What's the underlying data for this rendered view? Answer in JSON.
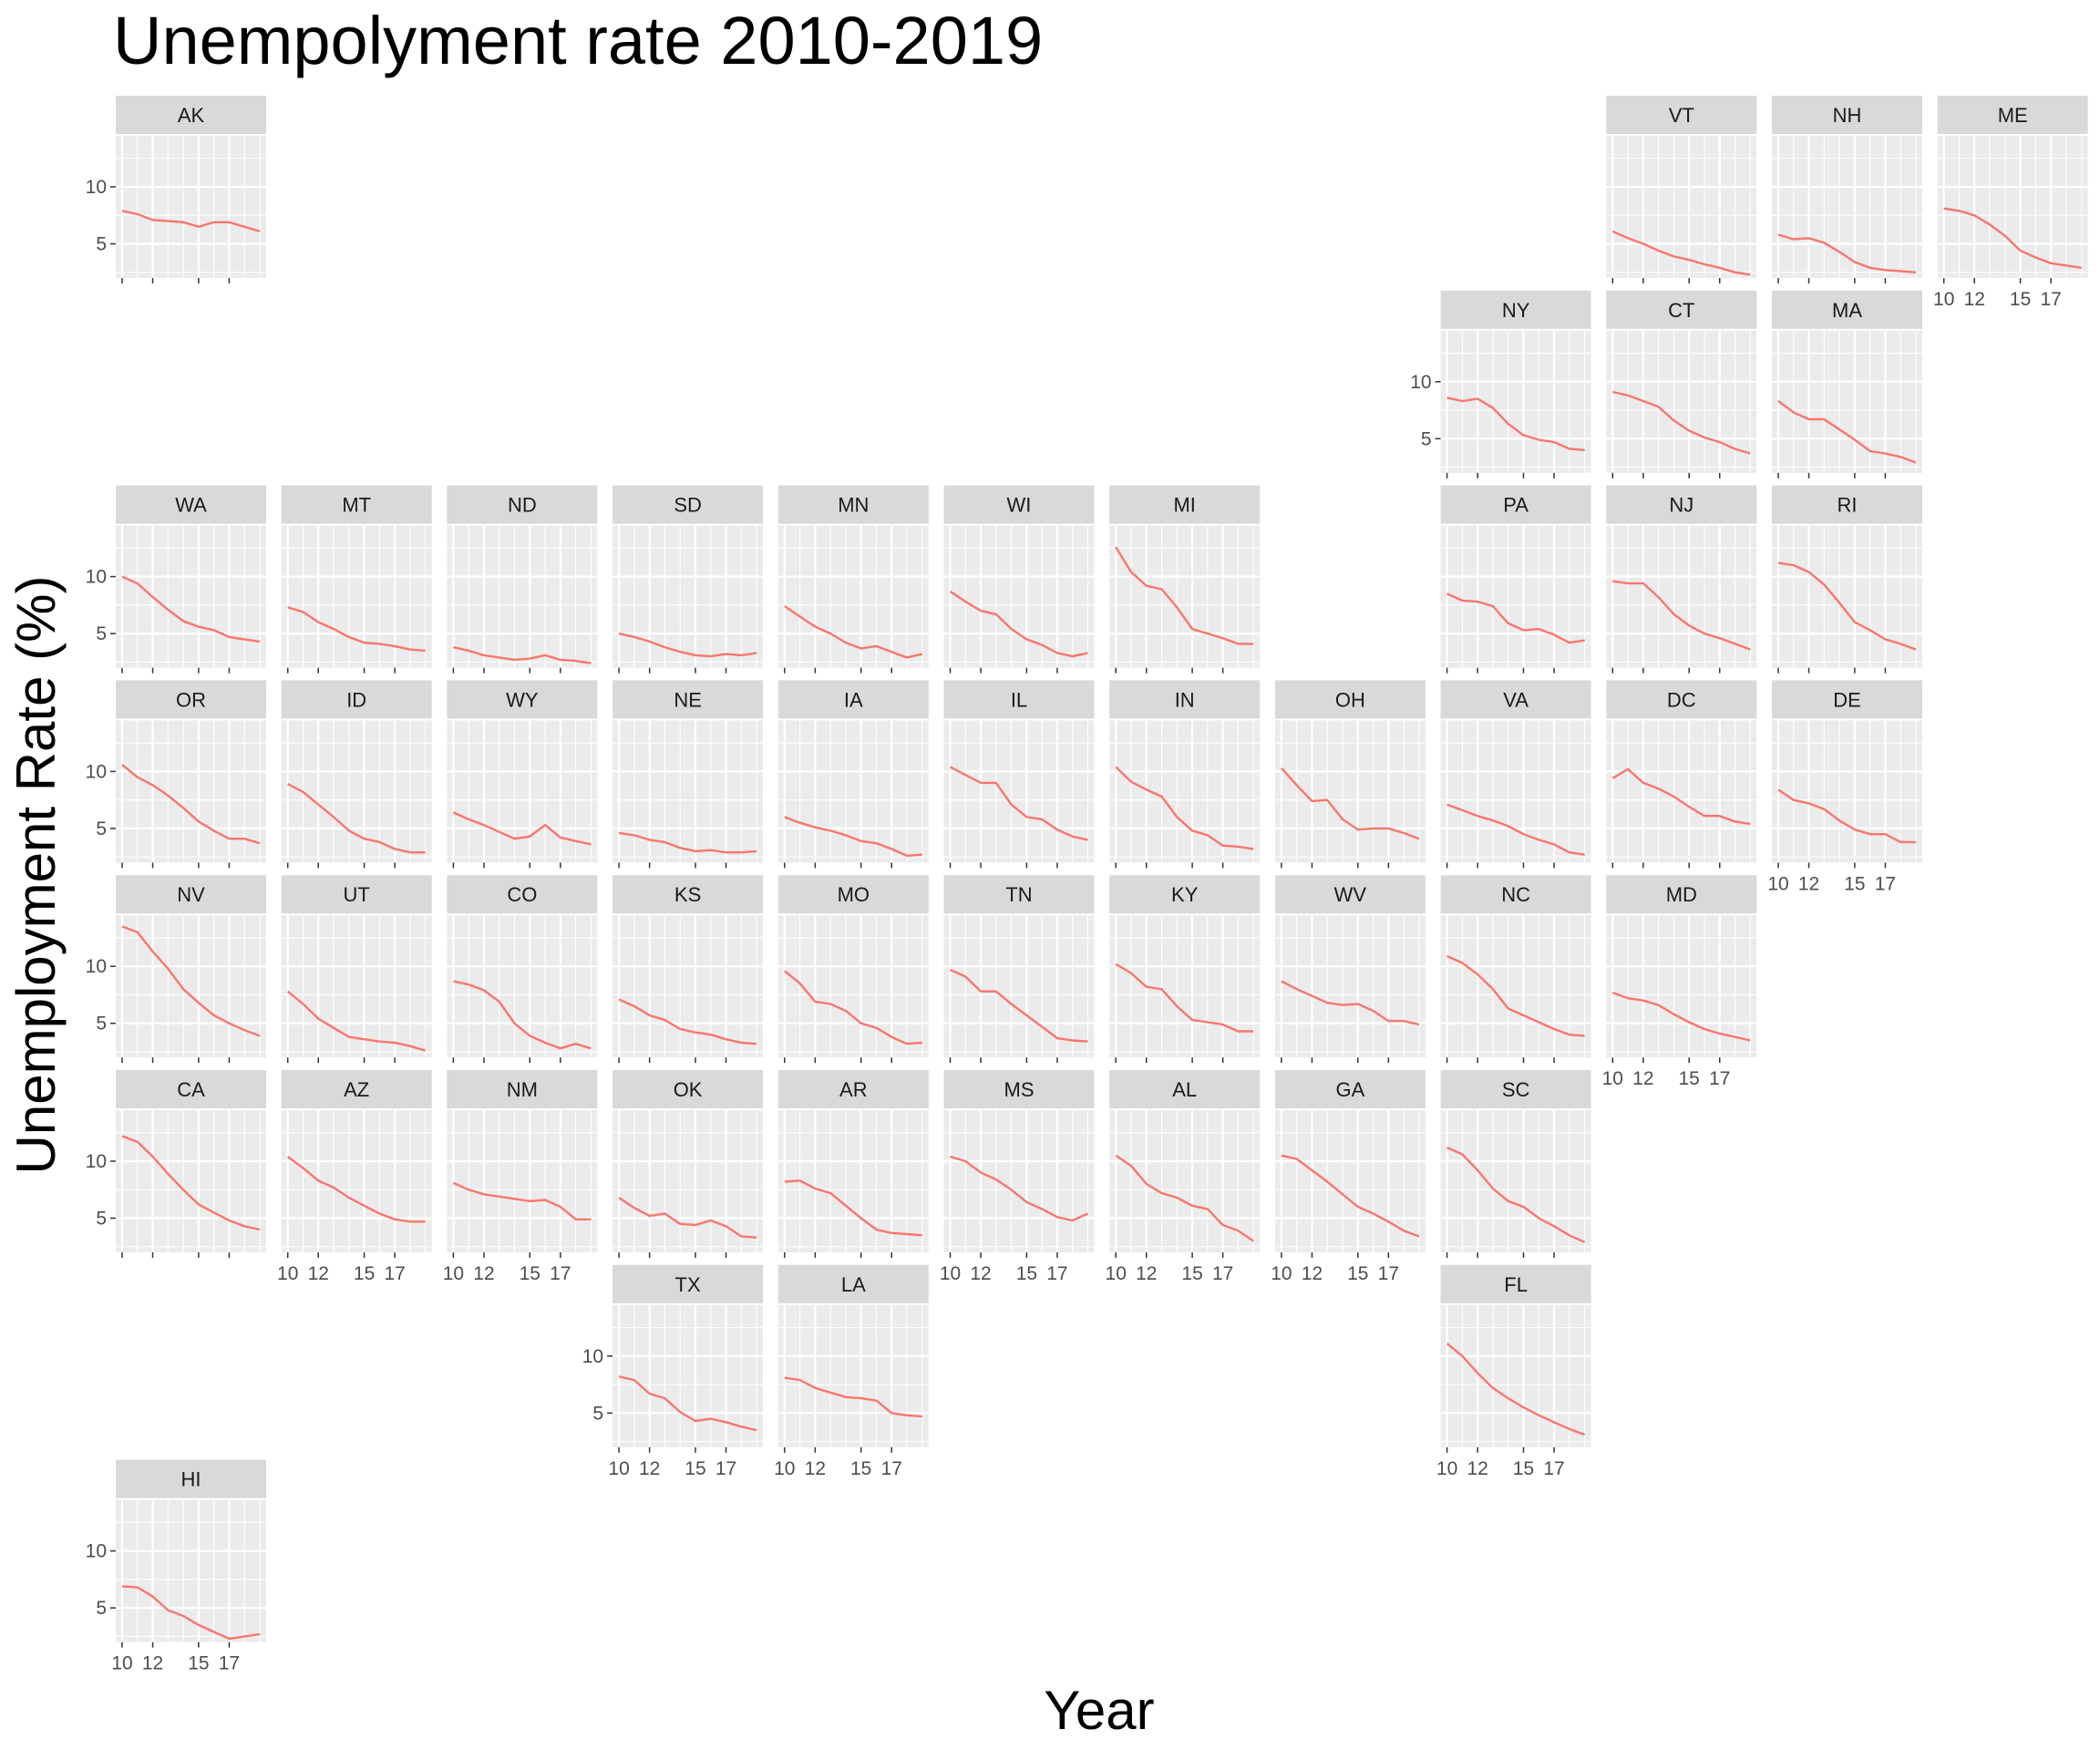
{
  "chart_data": {
    "type": "line",
    "layout": "small-multiples geofacet (US states)",
    "title": "Unempolyment rate 2010-2019",
    "xlabel": "Year",
    "ylabel": "Unemployment Rate (%)",
    "x": [
      2010,
      2011,
      2012,
      2013,
      2014,
      2015,
      2016,
      2017,
      2018,
      2019
    ],
    "xticks": [
      10,
      12,
      15,
      17
    ],
    "xlim": [
      2010,
      2019
    ],
    "yticks": [
      5,
      10
    ],
    "ylim": [
      2.0,
      14.0
    ],
    "grid": true,
    "legend": "none",
    "colors": {
      "line": "#f8766d",
      "panel": "#ebebeb",
      "strip": "#d9d9d9",
      "grid": "#ffffff"
    },
    "series": [
      {
        "name": "AK",
        "row": 0,
        "col": 0,
        "values": [
          7.9,
          7.6,
          7.1,
          7.0,
          6.9,
          6.5,
          6.9,
          6.9,
          6.5,
          6.1
        ]
      },
      {
        "name": "VT",
        "row": 0,
        "col": 9,
        "values": [
          6.1,
          5.5,
          5.0,
          4.4,
          3.9,
          3.6,
          3.2,
          2.9,
          2.5,
          2.3
        ]
      },
      {
        "name": "NH",
        "row": 0,
        "col": 10,
        "values": [
          5.8,
          5.4,
          5.5,
          5.1,
          4.3,
          3.4,
          2.9,
          2.7,
          2.6,
          2.5
        ]
      },
      {
        "name": "ME",
        "row": 0,
        "col": 11,
        "values": [
          8.1,
          7.9,
          7.5,
          6.7,
          5.7,
          4.4,
          3.8,
          3.3,
          3.1,
          2.9
        ]
      },
      {
        "name": "NY",
        "row": 1,
        "col": 8,
        "values": [
          8.6,
          8.3,
          8.5,
          7.7,
          6.3,
          5.3,
          4.9,
          4.7,
          4.1,
          4.0
        ]
      },
      {
        "name": "CT",
        "row": 1,
        "col": 9,
        "values": [
          9.1,
          8.8,
          8.3,
          7.8,
          6.6,
          5.7,
          5.1,
          4.7,
          4.1,
          3.7
        ]
      },
      {
        "name": "MA",
        "row": 1,
        "col": 10,
        "values": [
          8.3,
          7.3,
          6.7,
          6.7,
          5.8,
          4.9,
          3.9,
          3.7,
          3.4,
          2.9
        ]
      },
      {
        "name": "WA",
        "row": 2,
        "col": 0,
        "values": [
          10.0,
          9.4,
          8.2,
          7.1,
          6.1,
          5.6,
          5.3,
          4.7,
          4.5,
          4.3
        ]
      },
      {
        "name": "MT",
        "row": 2,
        "col": 1,
        "values": [
          7.3,
          6.9,
          6.0,
          5.4,
          4.7,
          4.2,
          4.1,
          3.9,
          3.6,
          3.5
        ]
      },
      {
        "name": "ND",
        "row": 2,
        "col": 2,
        "values": [
          3.8,
          3.5,
          3.1,
          2.9,
          2.7,
          2.8,
          3.1,
          2.7,
          2.6,
          2.4
        ]
      },
      {
        "name": "SD",
        "row": 2,
        "col": 3,
        "values": [
          5.0,
          4.7,
          4.3,
          3.8,
          3.4,
          3.1,
          3.0,
          3.2,
          3.1,
          3.3
        ]
      },
      {
        "name": "MN",
        "row": 2,
        "col": 4,
        "values": [
          7.4,
          6.5,
          5.6,
          5.0,
          4.2,
          3.7,
          3.9,
          3.4,
          2.9,
          3.2
        ]
      },
      {
        "name": "WI",
        "row": 2,
        "col": 5,
        "values": [
          8.7,
          7.8,
          7.0,
          6.7,
          5.4,
          4.5,
          4.0,
          3.3,
          3.0,
          3.3
        ]
      },
      {
        "name": "MI",
        "row": 2,
        "col": 6,
        "values": [
          12.6,
          10.4,
          9.2,
          8.9,
          7.3,
          5.4,
          5.0,
          4.6,
          4.1,
          4.1
        ]
      },
      {
        "name": "PA",
        "row": 2,
        "col": 8,
        "values": [
          8.5,
          7.9,
          7.8,
          7.4,
          5.9,
          5.3,
          5.4,
          4.9,
          4.2,
          4.4
        ]
      },
      {
        "name": "NJ",
        "row": 2,
        "col": 9,
        "values": [
          9.6,
          9.4,
          9.4,
          8.2,
          6.7,
          5.7,
          5.0,
          4.6,
          4.1,
          3.6
        ]
      },
      {
        "name": "RI",
        "row": 2,
        "col": 10,
        "values": [
          11.2,
          11.0,
          10.4,
          9.3,
          7.7,
          6.0,
          5.3,
          4.5,
          4.1,
          3.6
        ]
      },
      {
        "name": "OR",
        "row": 3,
        "col": 0,
        "values": [
          10.6,
          9.5,
          8.8,
          7.9,
          6.8,
          5.6,
          4.8,
          4.1,
          4.1,
          3.7
        ]
      },
      {
        "name": "ID",
        "row": 3,
        "col": 1,
        "values": [
          8.9,
          8.2,
          7.1,
          6.0,
          4.8,
          4.1,
          3.8,
          3.2,
          2.9,
          2.9
        ]
      },
      {
        "name": "WY",
        "row": 3,
        "col": 2,
        "values": [
          6.4,
          5.8,
          5.3,
          4.7,
          4.1,
          4.3,
          5.3,
          4.2,
          3.9,
          3.6
        ]
      },
      {
        "name": "NE",
        "row": 3,
        "col": 3,
        "values": [
          4.6,
          4.4,
          4.0,
          3.8,
          3.3,
          3.0,
          3.1,
          2.9,
          2.9,
          3.0
        ]
      },
      {
        "name": "IA",
        "row": 3,
        "col": 4,
        "values": [
          6.0,
          5.5,
          5.1,
          4.8,
          4.4,
          3.9,
          3.7,
          3.2,
          2.6,
          2.7
        ]
      },
      {
        "name": "IL",
        "row": 3,
        "col": 5,
        "values": [
          10.4,
          9.7,
          9.0,
          9.0,
          7.1,
          6.0,
          5.8,
          4.9,
          4.3,
          4.0
        ]
      },
      {
        "name": "IN",
        "row": 3,
        "col": 6,
        "values": [
          10.4,
          9.1,
          8.4,
          7.8,
          6.0,
          4.8,
          4.4,
          3.5,
          3.4,
          3.2
        ]
      },
      {
        "name": "OH",
        "row": 3,
        "col": 7,
        "values": [
          10.3,
          8.8,
          7.4,
          7.5,
          5.8,
          4.9,
          5.0,
          5.0,
          4.6,
          4.1
        ]
      },
      {
        "name": "VA",
        "row": 3,
        "col": 8,
        "values": [
          7.1,
          6.6,
          6.1,
          5.7,
          5.2,
          4.5,
          4.0,
          3.6,
          2.9,
          2.7
        ]
      },
      {
        "name": "DC",
        "row": 3,
        "col": 9,
        "values": [
          9.4,
          10.2,
          9.0,
          8.5,
          7.8,
          6.9,
          6.1,
          6.1,
          5.6,
          5.4
        ]
      },
      {
        "name": "DE",
        "row": 3,
        "col": 10,
        "values": [
          8.4,
          7.5,
          7.2,
          6.7,
          5.7,
          4.9,
          4.5,
          4.5,
          3.8,
          3.8
        ]
      },
      {
        "name": "NV",
        "row": 4,
        "col": 0,
        "values": [
          13.5,
          13.0,
          11.3,
          9.8,
          8.0,
          6.8,
          5.7,
          5.0,
          4.4,
          3.9
        ]
      },
      {
        "name": "UT",
        "row": 4,
        "col": 1,
        "values": [
          7.8,
          6.7,
          5.4,
          4.6,
          3.8,
          3.6,
          3.4,
          3.3,
          3.0,
          2.6
        ]
      },
      {
        "name": "CO",
        "row": 4,
        "col": 2,
        "values": [
          8.7,
          8.4,
          7.9,
          6.9,
          5.0,
          3.9,
          3.3,
          2.8,
          3.2,
          2.8
        ]
      },
      {
        "name": "KS",
        "row": 4,
        "col": 3,
        "values": [
          7.1,
          6.5,
          5.7,
          5.3,
          4.5,
          4.2,
          4.0,
          3.6,
          3.3,
          3.2
        ]
      },
      {
        "name": "MO",
        "row": 4,
        "col": 4,
        "values": [
          9.6,
          8.5,
          6.9,
          6.7,
          6.1,
          5.0,
          4.6,
          3.8,
          3.2,
          3.3
        ]
      },
      {
        "name": "TN",
        "row": 4,
        "col": 5,
        "values": [
          9.7,
          9.1,
          7.8,
          7.8,
          6.7,
          5.7,
          4.7,
          3.7,
          3.5,
          3.4
        ]
      },
      {
        "name": "KY",
        "row": 4,
        "col": 6,
        "values": [
          10.2,
          9.4,
          8.2,
          8.0,
          6.5,
          5.3,
          5.1,
          4.9,
          4.3,
          4.3
        ]
      },
      {
        "name": "WV",
        "row": 4,
        "col": 7,
        "values": [
          8.7,
          8.0,
          7.4,
          6.8,
          6.6,
          6.7,
          6.1,
          5.2,
          5.2,
          4.9
        ]
      },
      {
        "name": "NC",
        "row": 4,
        "col": 8,
        "values": [
          10.9,
          10.3,
          9.3,
          8.0,
          6.3,
          5.7,
          5.1,
          4.5,
          4.0,
          3.9
        ]
      },
      {
        "name": "MD",
        "row": 4,
        "col": 9,
        "values": [
          7.7,
          7.2,
          7.0,
          6.6,
          5.8,
          5.1,
          4.5,
          4.1,
          3.8,
          3.5
        ]
      },
      {
        "name": "CA",
        "row": 5,
        "col": 0,
        "values": [
          12.2,
          11.7,
          10.4,
          8.9,
          7.5,
          6.2,
          5.5,
          4.8,
          4.3,
          4.0
        ]
      },
      {
        "name": "AZ",
        "row": 5,
        "col": 1,
        "values": [
          10.4,
          9.4,
          8.3,
          7.7,
          6.8,
          6.1,
          5.4,
          4.9,
          4.7,
          4.7
        ]
      },
      {
        "name": "NM",
        "row": 5,
        "col": 2,
        "values": [
          8.1,
          7.5,
          7.1,
          6.9,
          6.7,
          6.5,
          6.6,
          6.0,
          4.9,
          4.9
        ]
      },
      {
        "name": "OK",
        "row": 5,
        "col": 3,
        "values": [
          6.8,
          5.9,
          5.2,
          5.4,
          4.5,
          4.4,
          4.8,
          4.3,
          3.4,
          3.3
        ]
      },
      {
        "name": "AR",
        "row": 5,
        "col": 4,
        "values": [
          8.2,
          8.3,
          7.6,
          7.2,
          6.1,
          5.0,
          4.0,
          3.7,
          3.6,
          3.5
        ]
      },
      {
        "name": "MS",
        "row": 5,
        "col": 5,
        "values": [
          10.4,
          10.0,
          9.0,
          8.4,
          7.5,
          6.4,
          5.8,
          5.1,
          4.8,
          5.4
        ]
      },
      {
        "name": "AL",
        "row": 5,
        "col": 6,
        "values": [
          10.5,
          9.6,
          8.0,
          7.2,
          6.8,
          6.1,
          5.8,
          4.4,
          3.9,
          3.0
        ]
      },
      {
        "name": "GA",
        "row": 5,
        "col": 7,
        "values": [
          10.5,
          10.2,
          9.2,
          8.2,
          7.1,
          6.0,
          5.4,
          4.7,
          3.9,
          3.4
        ]
      },
      {
        "name": "SC",
        "row": 5,
        "col": 8,
        "values": [
          11.2,
          10.6,
          9.2,
          7.6,
          6.5,
          6.0,
          5.0,
          4.3,
          3.5,
          2.9
        ]
      },
      {
        "name": "TX",
        "row": 6,
        "col": 3,
        "values": [
          8.2,
          7.9,
          6.7,
          6.3,
          5.1,
          4.3,
          4.5,
          4.2,
          3.8,
          3.5
        ]
      },
      {
        "name": "LA",
        "row": 6,
        "col": 4,
        "values": [
          8.1,
          7.9,
          7.2,
          6.8,
          6.4,
          6.3,
          6.1,
          5.0,
          4.8,
          4.7
        ]
      },
      {
        "name": "FL",
        "row": 6,
        "col": 8,
        "values": [
          11.1,
          10.0,
          8.5,
          7.2,
          6.3,
          5.5,
          4.8,
          4.2,
          3.6,
          3.1
        ]
      },
      {
        "name": "HI",
        "row": 7,
        "col": 0,
        "values": [
          6.9,
          6.8,
          6.0,
          4.8,
          4.3,
          3.5,
          2.9,
          2.3,
          2.5,
          2.7
        ]
      }
    ]
  }
}
